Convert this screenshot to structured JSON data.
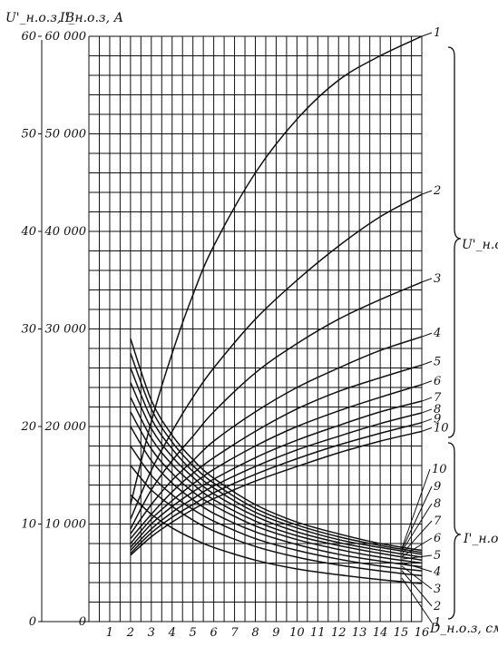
{
  "chart_data": {
    "type": "line",
    "xlabel": "D_н.о.з, см",
    "ylabel_left": "U'_н.о.з, В",
    "ylabel_right": "I'_н.о.з, А",
    "xlim": [
      0,
      16
    ],
    "ylim_U": [
      0,
      60
    ],
    "ylim_I": [
      0,
      60000
    ],
    "x_ticks": [
      "1",
      "2",
      "3",
      "4",
      "5",
      "6",
      "7",
      "8",
      "9",
      "10",
      "11",
      "12",
      "13",
      "14",
      "15",
      "16"
    ],
    "x_tick_values": [
      1,
      2,
      3,
      4,
      5,
      6,
      7,
      8,
      9,
      10,
      11,
      12,
      13,
      14,
      15,
      16
    ],
    "y_ticks_U": [
      "0",
      "10",
      "20",
      "30",
      "40",
      "50",
      "60"
    ],
    "y_ticks_U_values": [
      0,
      10,
      20,
      30,
      40,
      50,
      60
    ],
    "y_ticks_I": [
      "0",
      "10 000",
      "20 000",
      "30 000",
      "40 000",
      "50 000",
      "60 000"
    ],
    "grid": true,
    "group_labels": {
      "U": "U'_н.о.з",
      "I": "I'_н.о.з"
    },
    "u_series": [
      {
        "name": "1",
        "x": [
          2,
          3,
          4,
          5,
          6,
          8,
          10,
          12,
          14,
          16
        ],
        "y": [
          12.0,
          20.5,
          27.5,
          33.5,
          38.5,
          46.0,
          51.5,
          55.5,
          58.0,
          60.0
        ]
      },
      {
        "name": "2",
        "x": [
          2,
          3,
          4,
          5,
          6,
          8,
          10,
          12,
          14,
          16
        ],
        "y": [
          10.5,
          15.5,
          19.5,
          23.0,
          26.0,
          31.0,
          35.0,
          38.5,
          41.5,
          43.8
        ]
      },
      {
        "name": "3",
        "x": [
          2,
          3,
          4,
          5,
          6,
          8,
          10,
          12,
          14,
          16
        ],
        "y": [
          9.5,
          13.5,
          16.5,
          19.0,
          21.5,
          25.5,
          28.5,
          31.0,
          33.0,
          34.8
        ]
      },
      {
        "name": "4",
        "x": [
          2,
          3,
          4,
          5,
          6,
          8,
          10,
          12,
          14,
          16
        ],
        "y": [
          9.0,
          12.0,
          14.5,
          16.5,
          18.5,
          21.5,
          24.0,
          26.0,
          27.8,
          29.2
        ]
      },
      {
        "name": "5",
        "x": [
          2,
          3,
          4,
          5,
          6,
          8,
          10,
          12,
          14,
          16
        ],
        "y": [
          8.5,
          11.0,
          13.3,
          15.2,
          16.8,
          19.5,
          21.8,
          23.6,
          25.0,
          26.3
        ]
      },
      {
        "name": "6",
        "x": [
          2,
          3,
          4,
          5,
          6,
          8,
          10,
          12,
          14,
          16
        ],
        "y": [
          8.0,
          10.5,
          12.4,
          14.1,
          15.6,
          18.0,
          20.0,
          21.6,
          23.0,
          24.3
        ]
      },
      {
        "name": "7",
        "x": [
          2,
          3,
          4,
          5,
          6,
          8,
          10,
          12,
          14,
          16
        ],
        "y": [
          7.6,
          10.0,
          11.8,
          13.3,
          14.6,
          16.8,
          18.6,
          20.1,
          21.5,
          22.6
        ]
      },
      {
        "name": "8",
        "x": [
          2,
          3,
          4,
          5,
          6,
          8,
          10,
          12,
          14,
          16
        ],
        "y": [
          7.3,
          9.5,
          11.2,
          12.6,
          13.9,
          15.9,
          17.6,
          19.0,
          20.3,
          21.4
        ]
      },
      {
        "name": "9",
        "x": [
          2,
          3,
          4,
          5,
          6,
          8,
          10,
          12,
          14,
          16
        ],
        "y": [
          7.0,
          9.1,
          10.7,
          12.0,
          13.2,
          15.1,
          16.7,
          18.1,
          19.3,
          20.4
        ]
      },
      {
        "name": "10",
        "x": [
          2,
          3,
          4,
          5,
          6,
          8,
          10,
          12,
          14,
          16
        ],
        "y": [
          6.8,
          8.7,
          10.2,
          11.5,
          12.6,
          14.4,
          15.9,
          17.3,
          18.5,
          19.5
        ]
      }
    ],
    "i_series": [
      {
        "name": "1",
        "x": [
          2,
          3,
          4,
          5,
          6,
          8,
          10,
          12,
          14,
          16
        ],
        "y": [
          13000,
          11000,
          9600,
          8500,
          7600,
          6300,
          5400,
          4800,
          4300,
          3900
        ]
      },
      {
        "name": "2",
        "x": [
          2,
          3,
          4,
          5,
          6,
          8,
          10,
          12,
          14,
          16
        ],
        "y": [
          16000,
          13500,
          11800,
          10400,
          9300,
          7700,
          6600,
          5800,
          5200,
          4700
        ]
      },
      {
        "name": "3",
        "x": [
          2,
          3,
          4,
          5,
          6,
          8,
          10,
          12,
          14,
          16
        ],
        "y": [
          18000,
          15000,
          13000,
          11500,
          10300,
          8500,
          7300,
          6400,
          5700,
          5200
        ]
      },
      {
        "name": "4",
        "x": [
          2,
          3,
          4,
          5,
          6,
          8,
          10,
          12,
          14,
          16
        ],
        "y": [
          20000,
          16500,
          14200,
          12500,
          11100,
          9200,
          7900,
          6900,
          6200,
          5600
        ]
      },
      {
        "name": "5",
        "x": [
          2,
          3,
          4,
          5,
          6,
          8,
          10,
          12,
          14,
          16
        ],
        "y": [
          21500,
          17700,
          15200,
          13300,
          11900,
          9800,
          8400,
          7400,
          6600,
          6000
        ]
      },
      {
        "name": "6",
        "x": [
          2,
          3,
          4,
          5,
          6,
          8,
          10,
          12,
          14,
          16
        ],
        "y": [
          23000,
          18800,
          16100,
          14100,
          12500,
          10300,
          8800,
          7800,
          7000,
          6300
        ]
      },
      {
        "name": "7",
        "x": [
          2,
          3,
          4,
          5,
          6,
          8,
          10,
          12,
          14,
          16
        ],
        "y": [
          24500,
          19800,
          16900,
          14800,
          13100,
          10800,
          9200,
          8100,
          7300,
          6600
        ]
      },
      {
        "name": "8",
        "x": [
          2,
          3,
          4,
          5,
          6,
          8,
          10,
          12,
          14,
          16
        ],
        "y": [
          26000,
          20800,
          17700,
          15400,
          13700,
          11200,
          9600,
          8400,
          7600,
          6900
        ]
      },
      {
        "name": "9",
        "x": [
          2,
          3,
          4,
          5,
          6,
          8,
          10,
          12,
          14,
          16
        ],
        "y": [
          27500,
          21800,
          18400,
          16000,
          14200,
          11600,
          9900,
          8700,
          7800,
          7100
        ]
      },
      {
        "name": "10",
        "x": [
          2,
          3,
          4,
          5,
          6,
          8,
          10,
          12,
          14,
          16
        ],
        "y": [
          29000,
          22700,
          19100,
          16600,
          14700,
          12000,
          10200,
          9000,
          8000,
          7300
        ]
      }
    ]
  }
}
